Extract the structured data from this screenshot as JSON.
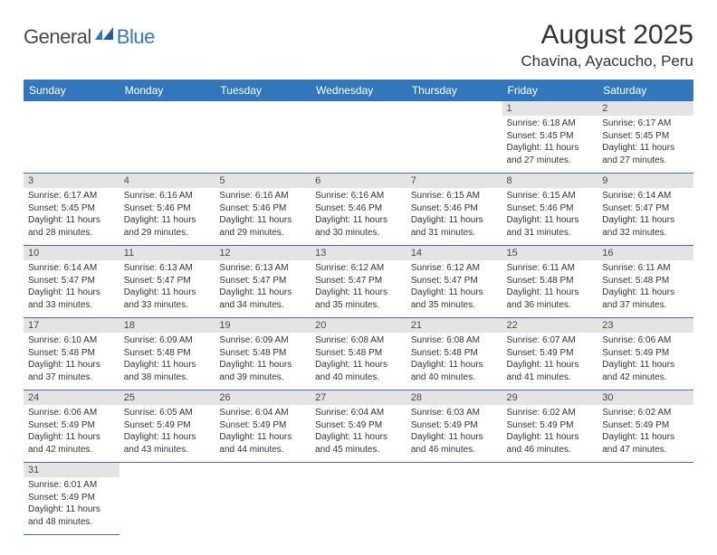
{
  "colors": {
    "header_bg": "#3277bc",
    "header_text": "#ffffff",
    "daynum_bg": "#e4e4e4",
    "daynum_text": "#4a4a4a",
    "body_text": "#333333",
    "logo_gray": "#4a4a4a",
    "logo_blue": "#3277bc",
    "cell_border": "#3277bc"
  },
  "logo": {
    "text1": "General",
    "text2": "Blue"
  },
  "title": "August 2025",
  "location": "Chavina, Ayacucho, Peru",
  "weekdays": [
    "Sunday",
    "Monday",
    "Tuesday",
    "Wednesday",
    "Thursday",
    "Friday",
    "Saturday"
  ],
  "weeks": [
    [
      null,
      null,
      null,
      null,
      null,
      {
        "n": "1",
        "sr": "6:18 AM",
        "ss": "5:45 PM",
        "dh": "11",
        "dm": "27"
      },
      {
        "n": "2",
        "sr": "6:17 AM",
        "ss": "5:45 PM",
        "dh": "11",
        "dm": "27"
      }
    ],
    [
      {
        "n": "3",
        "sr": "6:17 AM",
        "ss": "5:45 PM",
        "dh": "11",
        "dm": "28"
      },
      {
        "n": "4",
        "sr": "6:16 AM",
        "ss": "5:46 PM",
        "dh": "11",
        "dm": "29"
      },
      {
        "n": "5",
        "sr": "6:16 AM",
        "ss": "5:46 PM",
        "dh": "11",
        "dm": "29"
      },
      {
        "n": "6",
        "sr": "6:16 AM",
        "ss": "5:46 PM",
        "dh": "11",
        "dm": "30"
      },
      {
        "n": "7",
        "sr": "6:15 AM",
        "ss": "5:46 PM",
        "dh": "11",
        "dm": "31"
      },
      {
        "n": "8",
        "sr": "6:15 AM",
        "ss": "5:46 PM",
        "dh": "11",
        "dm": "31"
      },
      {
        "n": "9",
        "sr": "6:14 AM",
        "ss": "5:47 PM",
        "dh": "11",
        "dm": "32"
      }
    ],
    [
      {
        "n": "10",
        "sr": "6:14 AM",
        "ss": "5:47 PM",
        "dh": "11",
        "dm": "33"
      },
      {
        "n": "11",
        "sr": "6:13 AM",
        "ss": "5:47 PM",
        "dh": "11",
        "dm": "33"
      },
      {
        "n": "12",
        "sr": "6:13 AM",
        "ss": "5:47 PM",
        "dh": "11",
        "dm": "34"
      },
      {
        "n": "13",
        "sr": "6:12 AM",
        "ss": "5:47 PM",
        "dh": "11",
        "dm": "35"
      },
      {
        "n": "14",
        "sr": "6:12 AM",
        "ss": "5:47 PM",
        "dh": "11",
        "dm": "35"
      },
      {
        "n": "15",
        "sr": "6:11 AM",
        "ss": "5:48 PM",
        "dh": "11",
        "dm": "36"
      },
      {
        "n": "16",
        "sr": "6:11 AM",
        "ss": "5:48 PM",
        "dh": "11",
        "dm": "37"
      }
    ],
    [
      {
        "n": "17",
        "sr": "6:10 AM",
        "ss": "5:48 PM",
        "dh": "11",
        "dm": "37"
      },
      {
        "n": "18",
        "sr": "6:09 AM",
        "ss": "5:48 PM",
        "dh": "11",
        "dm": "38"
      },
      {
        "n": "19",
        "sr": "6:09 AM",
        "ss": "5:48 PM",
        "dh": "11",
        "dm": "39"
      },
      {
        "n": "20",
        "sr": "6:08 AM",
        "ss": "5:48 PM",
        "dh": "11",
        "dm": "40"
      },
      {
        "n": "21",
        "sr": "6:08 AM",
        "ss": "5:48 PM",
        "dh": "11",
        "dm": "40"
      },
      {
        "n": "22",
        "sr": "6:07 AM",
        "ss": "5:49 PM",
        "dh": "11",
        "dm": "41"
      },
      {
        "n": "23",
        "sr": "6:06 AM",
        "ss": "5:49 PM",
        "dh": "11",
        "dm": "42"
      }
    ],
    [
      {
        "n": "24",
        "sr": "6:06 AM",
        "ss": "5:49 PM",
        "dh": "11",
        "dm": "42"
      },
      {
        "n": "25",
        "sr": "6:05 AM",
        "ss": "5:49 PM",
        "dh": "11",
        "dm": "43"
      },
      {
        "n": "26",
        "sr": "6:04 AM",
        "ss": "5:49 PM",
        "dh": "11",
        "dm": "44"
      },
      {
        "n": "27",
        "sr": "6:04 AM",
        "ss": "5:49 PM",
        "dh": "11",
        "dm": "45"
      },
      {
        "n": "28",
        "sr": "6:03 AM",
        "ss": "5:49 PM",
        "dh": "11",
        "dm": "46"
      },
      {
        "n": "29",
        "sr": "6:02 AM",
        "ss": "5:49 PM",
        "dh": "11",
        "dm": "46"
      },
      {
        "n": "30",
        "sr": "6:02 AM",
        "ss": "5:49 PM",
        "dh": "11",
        "dm": "47"
      }
    ],
    [
      {
        "n": "31",
        "sr": "6:01 AM",
        "ss": "5:49 PM",
        "dh": "11",
        "dm": "48"
      },
      null,
      null,
      null,
      null,
      null,
      null
    ]
  ],
  "labels": {
    "sunrise": "Sunrise:",
    "sunset": "Sunset:",
    "daylight": "Daylight:",
    "hours": "hours",
    "and": "and",
    "minutes": "minutes."
  }
}
